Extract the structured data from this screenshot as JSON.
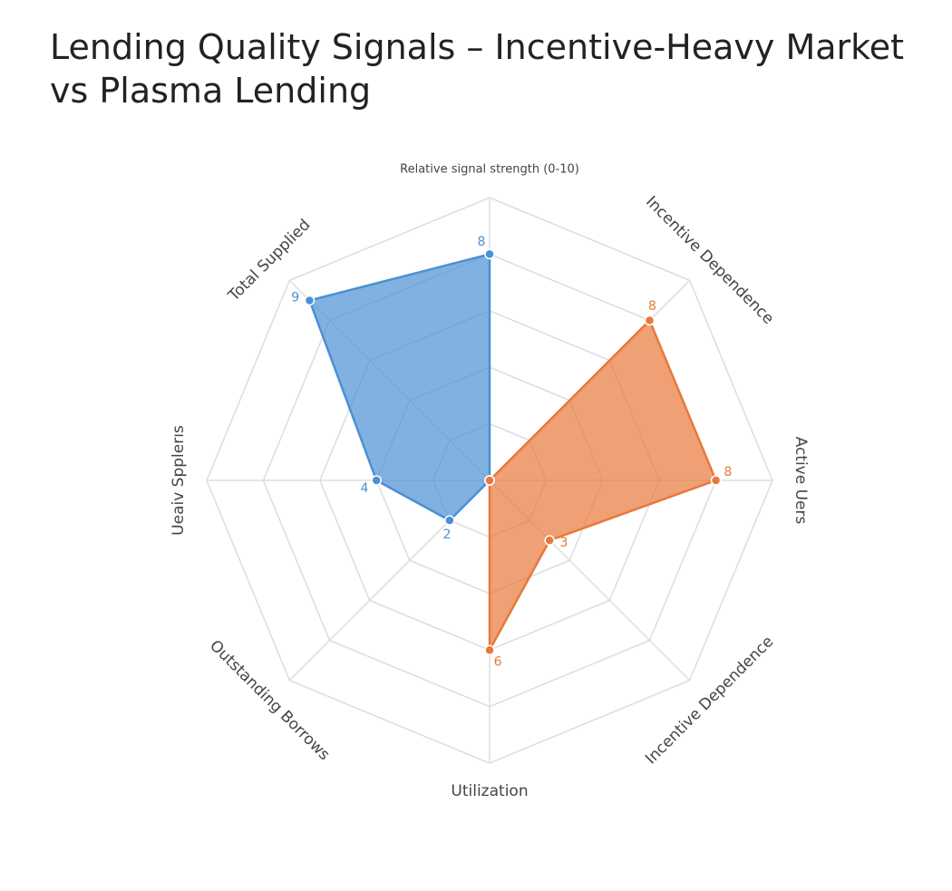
{
  "chart_data": {
    "type": "radar",
    "title": "Lending Quality Signals – Incentive-Heavy Market vs Plasma Lending",
    "axis_label": "Relative signal strength (0-10)",
    "categories": [
      null,
      "Incentive Dependence",
      "Active Uers",
      "Incentive Dependence",
      "Utilization",
      "Outstanding Borrows",
      "Ueaiv Spplerıs",
      "Total Supplied"
    ],
    "rlim": [
      0,
      10
    ],
    "rticks": [
      2,
      4,
      6,
      8,
      10
    ],
    "grid": true,
    "series": [
      {
        "color": "#4a90d4",
        "values": [
          8,
          0,
          0,
          0,
          0,
          2,
          4,
          9
        ]
      },
      {
        "color": "#e8783a",
        "values": [
          0,
          8,
          8,
          3,
          6,
          0,
          0,
          0
        ]
      }
    ]
  }
}
